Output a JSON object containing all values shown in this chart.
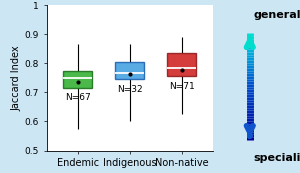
{
  "categories": [
    "Endemic",
    "Indigenous",
    "Non-native"
  ],
  "n_labels": [
    "N=67",
    "N=32",
    "N=71"
  ],
  "box_colors": [
    "#22aa22",
    "#3399dd",
    "#cc1111"
  ],
  "box_edge_colors": [
    "#116611",
    "#1155aa",
    "#881111"
  ],
  "whisker_low": [
    0.575,
    0.6,
    0.625
  ],
  "whisker_high": [
    0.865,
    0.865,
    0.89
  ],
  "q1": [
    0.715,
    0.745,
    0.755
  ],
  "median": [
    0.75,
    0.765,
    0.785
  ],
  "q3": [
    0.775,
    0.805,
    0.835
  ],
  "mean": [
    0.736,
    0.762,
    0.778
  ],
  "ylabel": "Jaccard Index",
  "ylim": [
    0.5,
    1.0
  ],
  "yticks": [
    0.5,
    0.6,
    0.7,
    0.8,
    0.9,
    1
  ],
  "bg_color": "#cce6f4",
  "plot_bg_color": "#ffffff",
  "arrow_top_text": "generalist",
  "arrow_bot_text": "specialist",
  "label_fontsize": 7,
  "tick_fontsize": 6.5,
  "n_fontsize": 6.5
}
